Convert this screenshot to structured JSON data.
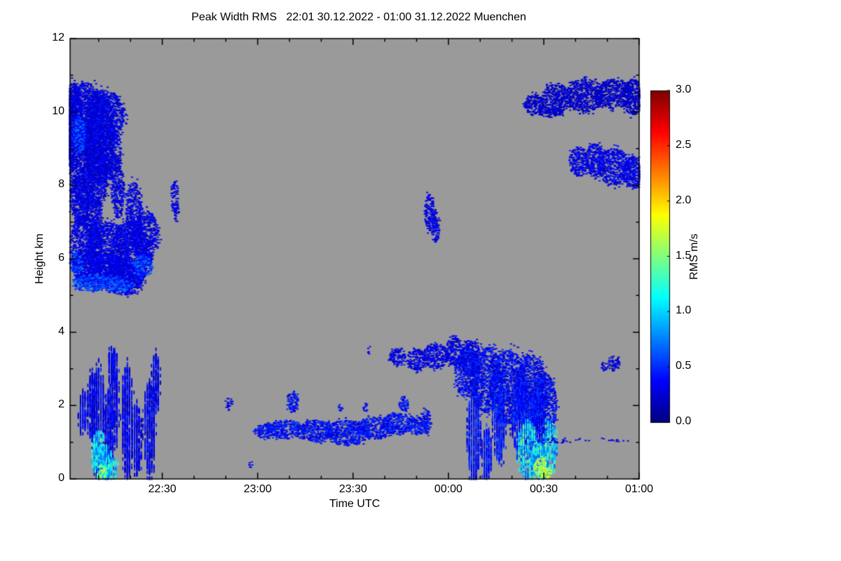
{
  "chart_data": {
    "type": "heatmap",
    "title": "Peak Width RMS   22:01 30.12.2022 - 01:00 31.12.2022 Muenchen",
    "xlabel": "Time UTC",
    "ylabel": "Height km",
    "x_axis": {
      "range_minutes_after_2200": [
        1,
        180
      ],
      "ticks": [
        {
          "label": "22:30",
          "min": 30
        },
        {
          "label": "23:00",
          "min": 60
        },
        {
          "label": "23:30",
          "min": 90
        },
        {
          "label": "00:00",
          "min": 120
        },
        {
          "label": "00:30",
          "min": 150
        },
        {
          "label": "01:00",
          "min": 180
        }
      ]
    },
    "y_axis": {
      "range_km": [
        0,
        12
      ],
      "ticks": [
        {
          "label": "0",
          "km": 0
        },
        {
          "label": "2",
          "km": 2
        },
        {
          "label": "4",
          "km": 4
        },
        {
          "label": "6",
          "km": 6
        },
        {
          "label": "8",
          "km": 8
        },
        {
          "label": "10",
          "km": 10
        },
        {
          "label": "12",
          "km": 12
        }
      ]
    },
    "colorbar": {
      "label": "RMS m/s",
      "min": 0,
      "max": 3,
      "colormap": "jet",
      "ticks": [
        {
          "label": "0.0",
          "v": 0.0
        },
        {
          "label": "0.5",
          "v": 0.5
        },
        {
          "label": "1.0",
          "v": 1.0
        },
        {
          "label": "1.5",
          "v": 1.5
        },
        {
          "label": "2.0",
          "v": 2.0
        },
        {
          "label": "2.5",
          "v": 2.5
        },
        {
          "label": "3.0",
          "v": 3.0
        }
      ]
    },
    "colors": {
      "no_data_gray": "#9a9a9a",
      "frame": "#000000",
      "page": "#ffffff"
    },
    "regions": [
      {
        "name": "upper-left-cloud-main",
        "rms": 0.28,
        "spread": 0.18,
        "ellipses": [
          [
            2,
            9.6,
            3,
            1.2
          ],
          [
            6,
            9.8,
            5,
            1.0
          ],
          [
            10,
            9.3,
            5,
            1.3
          ],
          [
            5,
            8.6,
            4,
            1.1
          ],
          [
            9,
            8.3,
            4,
            0.9
          ],
          [
            13,
            8.9,
            4,
            0.8
          ],
          [
            4,
            7.6,
            3,
            0.7
          ],
          [
            8,
            7.2,
            3,
            0.6
          ],
          [
            16,
            7.9,
            2,
            0.8
          ],
          [
            12,
            9.9,
            6,
            0.7
          ],
          [
            3,
            10.2,
            2,
            0.5
          ]
        ]
      },
      {
        "name": "upper-left-cloud-lower-lobe",
        "rms": 0.3,
        "spread": 0.15,
        "ellipses": [
          [
            6,
            6.3,
            5,
            0.9
          ],
          [
            13,
            6.2,
            7,
            0.8
          ],
          [
            20,
            6.1,
            6,
            0.9
          ],
          [
            25,
            6.6,
            4,
            0.7
          ],
          [
            10,
            5.7,
            8,
            0.5
          ],
          [
            18,
            5.5,
            6,
            0.5
          ],
          [
            21,
            7.2,
            2.5,
            0.9
          ]
        ]
      },
      {
        "name": "upper-left-cloud-bright-base",
        "rms": 0.55,
        "spread": 0.25,
        "ellipses": [
          [
            8,
            5.35,
            6,
            0.25
          ],
          [
            16,
            5.3,
            5,
            0.2
          ],
          [
            24,
            5.8,
            3,
            0.3
          ],
          [
            3,
            5.9,
            2,
            0.3
          ],
          [
            4,
            9.4,
            2,
            0.5
          ]
        ]
      },
      {
        "name": "small-patch-2225-8km",
        "rms": 0.3,
        "spread": 0.12,
        "density": 0.7,
        "ellipses": [
          [
            34,
            7.7,
            1.3,
            0.4
          ],
          [
            34.5,
            7.2,
            0.8,
            0.3
          ]
        ]
      },
      {
        "name": "upper-right-band-10km",
        "rms": 0.22,
        "spread": 0.12,
        "ellipses": [
          [
            147,
            10.2,
            3,
            0.3
          ],
          [
            154,
            10.35,
            5,
            0.4
          ],
          [
            163,
            10.45,
            6,
            0.45
          ],
          [
            172,
            10.5,
            6,
            0.4
          ],
          [
            178,
            10.4,
            3,
            0.5
          ],
          [
            152,
            10.0,
            4,
            0.15
          ]
        ]
      },
      {
        "name": "right-band-8km",
        "rms": 0.3,
        "spread": 0.15,
        "ellipses": [
          [
            161,
            8.65,
            3,
            0.4
          ],
          [
            166,
            8.7,
            3,
            0.45
          ],
          [
            172,
            8.5,
            5,
            0.5
          ],
          [
            178,
            8.35,
            3,
            0.45
          ]
        ]
      },
      {
        "name": "mid-patch-7km-2355",
        "rms": 0.3,
        "spread": 0.12,
        "ellipses": [
          [
            114,
            7.25,
            1.5,
            0.5
          ],
          [
            116,
            6.9,
            1.2,
            0.45
          ]
        ]
      },
      {
        "name": "lower-left-streaks",
        "rms": 0.32,
        "spread": 0.18,
        "streak": true,
        "ellipses": [
          [
            10,
            1.5,
            2,
            1.5
          ],
          [
            13,
            1.2,
            1.5,
            1.2
          ],
          [
            15,
            2.2,
            1.2,
            1.3
          ],
          [
            19,
            1.6,
            1.8,
            1.5
          ],
          [
            22,
            1.1,
            1.5,
            1.0
          ],
          [
            26,
            1.4,
            1.8,
            1.3
          ],
          [
            28,
            2.6,
            1.2,
            0.8
          ],
          [
            14,
            3.1,
            1,
            0.5
          ],
          [
            8,
            2.0,
            1.5,
            0.9
          ],
          [
            5,
            1.8,
            1.2,
            0.6
          ]
        ]
      },
      {
        "name": "lower-left-bright-ground",
        "rms": 1.0,
        "spread": 0.45,
        "streak": true,
        "ellipses": [
          [
            11,
            0.45,
            3,
            0.45
          ],
          [
            14,
            0.3,
            2,
            0.3
          ],
          [
            10,
            0.8,
            2,
            0.5
          ]
        ]
      },
      {
        "name": "lower-left-bright-core",
        "rms": 1.5,
        "spread": 0.3,
        "ellipses": [
          [
            11,
            0.2,
            1.5,
            0.2
          ]
        ]
      },
      {
        "name": "tiny-patch-2250-2km",
        "rms": 0.3,
        "spread": 0.1,
        "density": 0.6,
        "ellipses": [
          [
            51,
            2.05,
            1.2,
            0.18
          ]
        ]
      },
      {
        "name": "low-layer-2300-2350",
        "rms": 0.38,
        "spread": 0.2,
        "ellipses": [
          [
            63,
            1.3,
            4,
            0.2
          ],
          [
            69,
            1.35,
            6,
            0.25
          ],
          [
            78,
            1.3,
            6,
            0.3
          ],
          [
            88,
            1.25,
            7,
            0.35
          ],
          [
            97,
            1.4,
            6,
            0.3
          ],
          [
            104,
            1.5,
            5,
            0.3
          ],
          [
            110,
            1.45,
            3,
            0.25
          ],
          [
            71,
            2.1,
            1.8,
            0.3
          ],
          [
            106,
            2.05,
            1.5,
            0.2
          ],
          [
            113,
            1.55,
            1.5,
            0.35
          ]
        ]
      },
      {
        "name": "scattered-dots",
        "rms": 0.35,
        "spread": 0.15,
        "density": 0.5,
        "ellipses": [
          [
            86,
            1.95,
            1,
            0.12
          ],
          [
            94,
            1.9,
            0.8,
            0.1
          ],
          [
            94,
            2.0,
            0.7,
            0.1
          ],
          [
            95,
            3.5,
            0.7,
            0.1
          ],
          [
            58,
            0.4,
            0.8,
            0.1
          ]
        ]
      },
      {
        "name": "midnight-cloud-top-band-3km",
        "rms": 0.3,
        "spread": 0.15,
        "ellipses": [
          [
            104,
            3.3,
            2.5,
            0.25
          ],
          [
            110,
            3.25,
            3,
            0.3
          ],
          [
            116,
            3.35,
            4,
            0.35
          ],
          [
            122,
            3.45,
            3,
            0.4
          ],
          [
            127,
            3.3,
            3,
            0.5
          ]
        ]
      },
      {
        "name": "midnight-cloud-mass",
        "rms": 0.35,
        "spread": 0.2,
        "ellipses": [
          [
            126,
            2.9,
            4,
            0.7
          ],
          [
            132,
            2.7,
            5,
            0.9
          ],
          [
            139,
            2.5,
            6,
            1.0
          ],
          [
            146,
            2.4,
            5,
            1.0
          ],
          [
            150,
            2.0,
            4,
            0.9
          ]
        ]
      },
      {
        "name": "midnight-streaks-to-ground",
        "rms": 0.4,
        "spread": 0.2,
        "streak": true,
        "ellipses": [
          [
            128,
            1.2,
            2,
            1.2
          ],
          [
            132,
            0.7,
            1.5,
            0.7
          ],
          [
            136,
            1.5,
            2,
            1.0
          ],
          [
            143,
            1.6,
            3,
            1.0
          ],
          [
            148,
            1.4,
            2,
            1.0
          ]
        ]
      },
      {
        "name": "0030-bright-ground",
        "rms": 1.0,
        "spread": 0.5,
        "streak": true,
        "ellipses": [
          [
            145,
            0.8,
            3,
            0.8
          ],
          [
            149,
            0.5,
            3,
            0.5
          ],
          [
            152,
            0.9,
            2,
            0.7
          ]
        ]
      },
      {
        "name": "0030-bright-core",
        "rms": 1.7,
        "spread": 0.35,
        "ellipses": [
          [
            149,
            0.3,
            2,
            0.3
          ],
          [
            151,
            0.15,
            1.5,
            0.15
          ]
        ]
      },
      {
        "name": "patch-0045-3km",
        "rms": 0.25,
        "spread": 0.1,
        "density": 0.8,
        "ellipses": [
          [
            172,
            3.15,
            2,
            0.2
          ],
          [
            169,
            3.05,
            1,
            0.12
          ]
        ]
      },
      {
        "name": "thin-dotted-layer-1km",
        "rms": 0.3,
        "spread": 0.12,
        "density": 0.18,
        "ellipses": [
          [
            160,
            1.05,
            12,
            0.07
          ],
          [
            150,
            1.0,
            4,
            0.08
          ],
          [
            174,
            1.05,
            4,
            0.06
          ]
        ]
      }
    ]
  }
}
